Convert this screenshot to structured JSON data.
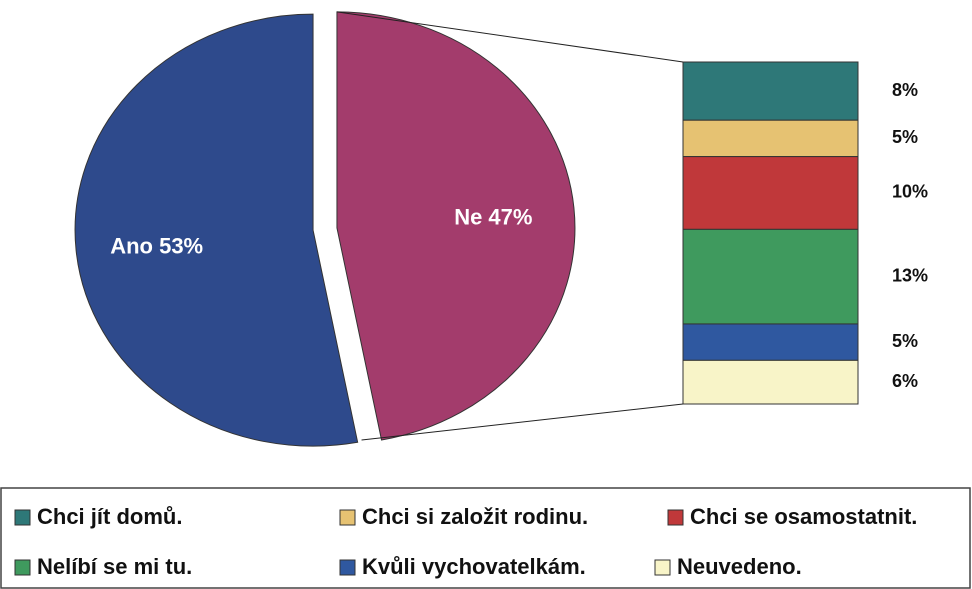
{
  "chart_data": {
    "type": "pie",
    "categories": [
      "Ano",
      "Ne"
    ],
    "values": [
      53,
      47
    ],
    "value_labels": [
      "Ano 53%",
      "Ne 47%"
    ],
    "colors": [
      "#2e4a8c",
      "#a33c6c"
    ],
    "breakdown": {
      "categories": [
        "Chci jít domů.",
        "Chci si založit rodinu.",
        "Chci se osamostatnit.",
        "Nelíbí se mi tu.",
        "Kvůli vychovatelkám.",
        "Neuvedeno."
      ],
      "values": [
        8,
        5,
        10,
        13,
        5,
        6
      ],
      "value_labels": [
        "8%",
        "5%",
        "10%",
        "13%",
        "5%",
        "6%"
      ],
      "colors": [
        "#2e7878",
        "#e6c272",
        "#c0383a",
        "#3f9a5e",
        "#2f58a0",
        "#f8f4c8"
      ]
    }
  }
}
